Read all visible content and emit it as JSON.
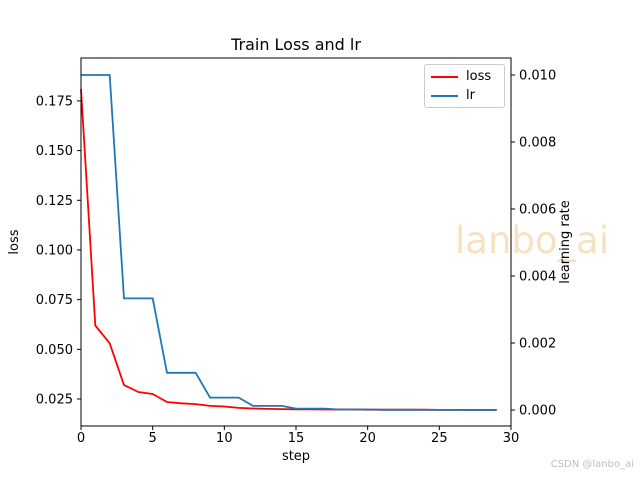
{
  "figure": {
    "title": "Train Loss and lr",
    "watermark": "lanbo_ai",
    "credit": "CSDN @lanbo_ai",
    "background": "#ffffff"
  },
  "colors": {
    "loss_line": "#ff0000",
    "lr_line": "#1f77b4",
    "spine": "#000000",
    "watermark": "#f6e2c2",
    "credit": "#bdbdc6",
    "legend_border": "#cccccc"
  },
  "chart_data": {
    "type": "line",
    "title": "Train Loss and lr",
    "xlabel": "step",
    "ylabel_left": "loss",
    "ylabel_right": "learning rate",
    "grid": false,
    "legend_position": "upper right",
    "xlim": [
      0,
      30
    ],
    "ylim_left": [
      0.0114,
      0.1966
    ],
    "ylim_right": [
      -0.000478,
      0.010507
    ],
    "xticks": {
      "values": [
        0,
        5,
        10,
        15,
        20,
        25,
        30
      ],
      "labels": [
        "0",
        "5",
        "10",
        "15",
        "20",
        "25",
        "30"
      ]
    },
    "yticks_left": {
      "values": [
        0.175,
        0.15,
        0.125,
        0.1,
        0.075,
        0.05,
        0.025
      ],
      "labels": [
        "0.175",
        "0.150",
        "0.125",
        "0.100",
        "0.075",
        "0.050",
        "0.025"
      ]
    },
    "yticks_right": {
      "values": [
        0.01,
        0.008,
        0.006,
        0.004,
        0.002,
        0.0
      ],
      "labels": [
        "0.010",
        "0.008",
        "0.006",
        "0.004",
        "0.002",
        "0.000"
      ]
    },
    "x": [
      0,
      1,
      2,
      3,
      4,
      5,
      6,
      7,
      8,
      9,
      10,
      11,
      12,
      13,
      14,
      15,
      16,
      17,
      18,
      19,
      20,
      21,
      22,
      23,
      24,
      25,
      26,
      27,
      28,
      29
    ],
    "series": [
      {
        "name": "loss",
        "axis": "left",
        "color": "#ff0000",
        "values": [
          0.181,
          0.062,
          0.053,
          0.032,
          0.0285,
          0.0275,
          0.0235,
          0.0228,
          0.0224,
          0.0215,
          0.0212,
          0.0205,
          0.0202,
          0.02,
          0.0199,
          0.0198,
          0.0198,
          0.0197,
          0.0197,
          0.0197,
          0.0196,
          0.0196,
          0.0196,
          0.0196,
          0.0196,
          0.0195,
          0.0195,
          0.0195,
          0.0195,
          0.0195
        ]
      },
      {
        "name": "lr",
        "axis": "right",
        "color": "#1f77b4",
        "values": [
          0.01,
          0.01,
          0.01,
          0.00333,
          0.00333,
          0.00333,
          0.00111,
          0.00111,
          0.00111,
          0.00037,
          0.00037,
          0.00037,
          0.000123,
          0.000123,
          0.000123,
          4.12e-05,
          4.12e-05,
          4.12e-05,
          1.37e-05,
          1.37e-05,
          1.37e-05,
          4.6e-06,
          4.6e-06,
          4.6e-06,
          1.5e-06,
          1.5e-06,
          1.5e-06,
          5e-07,
          5e-07,
          5e-07
        ]
      }
    ]
  }
}
